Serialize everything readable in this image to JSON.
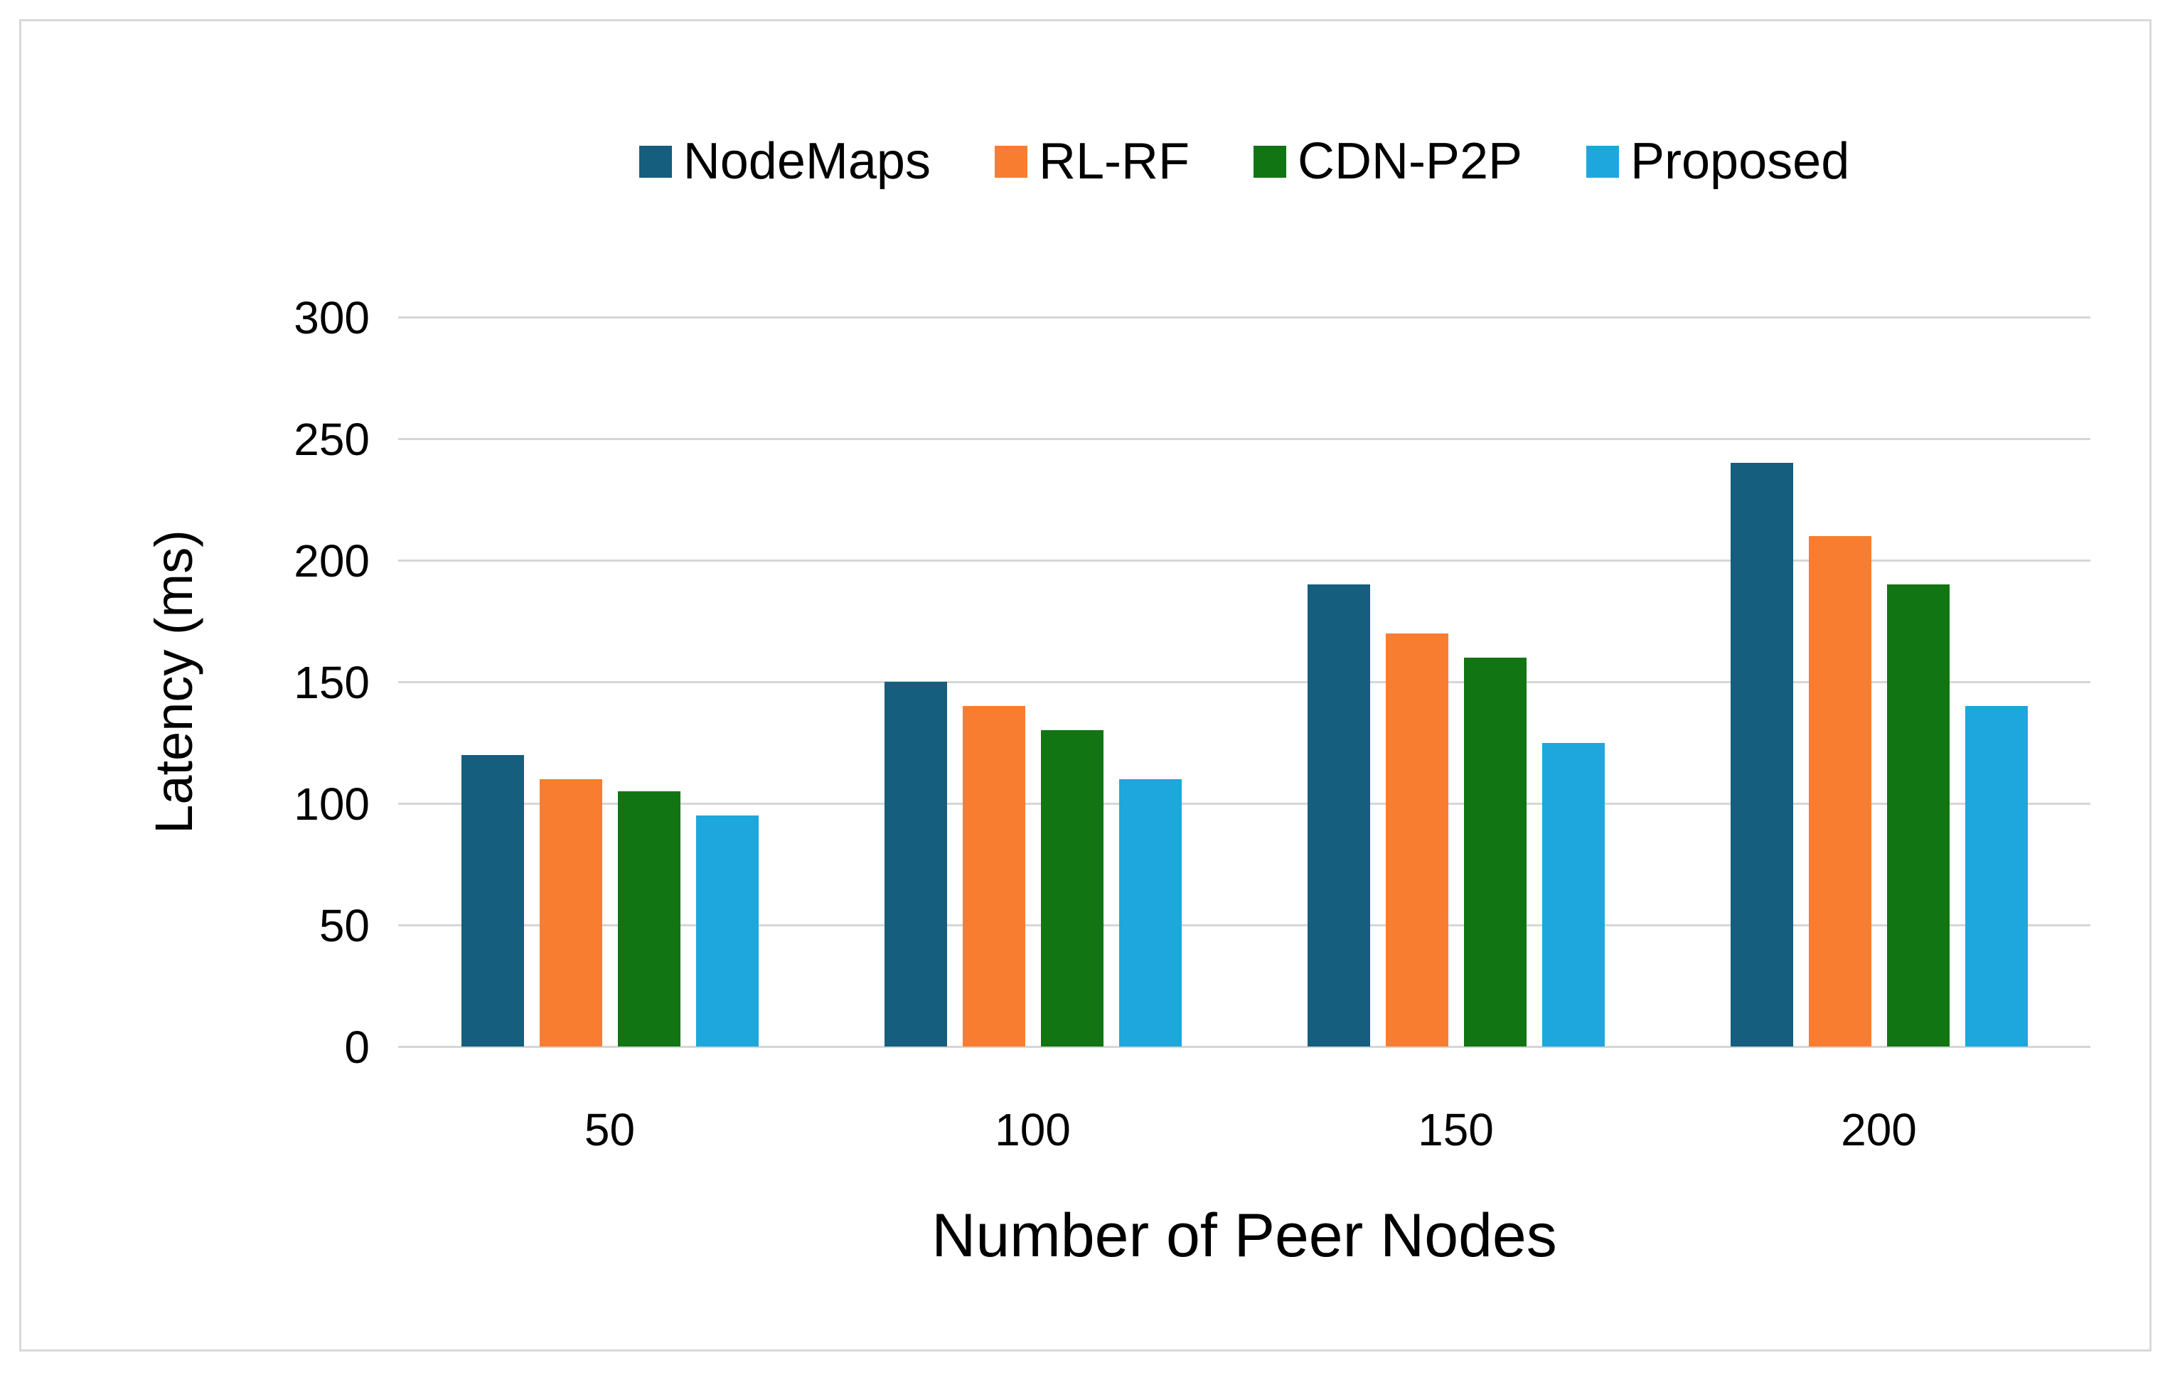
{
  "chart_data": {
    "type": "bar",
    "title": "",
    "xlabel": "Number of Peer Nodes",
    "ylabel": "Latency (ms)",
    "categories": [
      "50",
      "100",
      "150",
      "200"
    ],
    "series": [
      {
        "name": "NodeMaps",
        "color": "#155e7d",
        "values": [
          120,
          150,
          190,
          240
        ]
      },
      {
        "name": "RL-RF",
        "color": "#f97d30",
        "values": [
          110,
          140,
          170,
          210
        ]
      },
      {
        "name": "CDN-P2P",
        "color": "#127513",
        "values": [
          105,
          130,
          160,
          190
        ]
      },
      {
        "name": "Proposed",
        "color": "#1da7dc",
        "values": [
          95,
          110,
          125,
          140
        ]
      }
    ],
    "ylim": [
      0,
      300
    ],
    "ytick_interval": 50,
    "ytick_labels": [
      "0",
      "50",
      "100",
      "150",
      "200",
      "250",
      "300"
    ],
    "grid": true,
    "legend_position": "top-center"
  },
  "colors": {
    "background": "#ffffff",
    "chart_border": "#d9d9d9",
    "gridline": "#d6d6d6",
    "text": "#000000"
  }
}
